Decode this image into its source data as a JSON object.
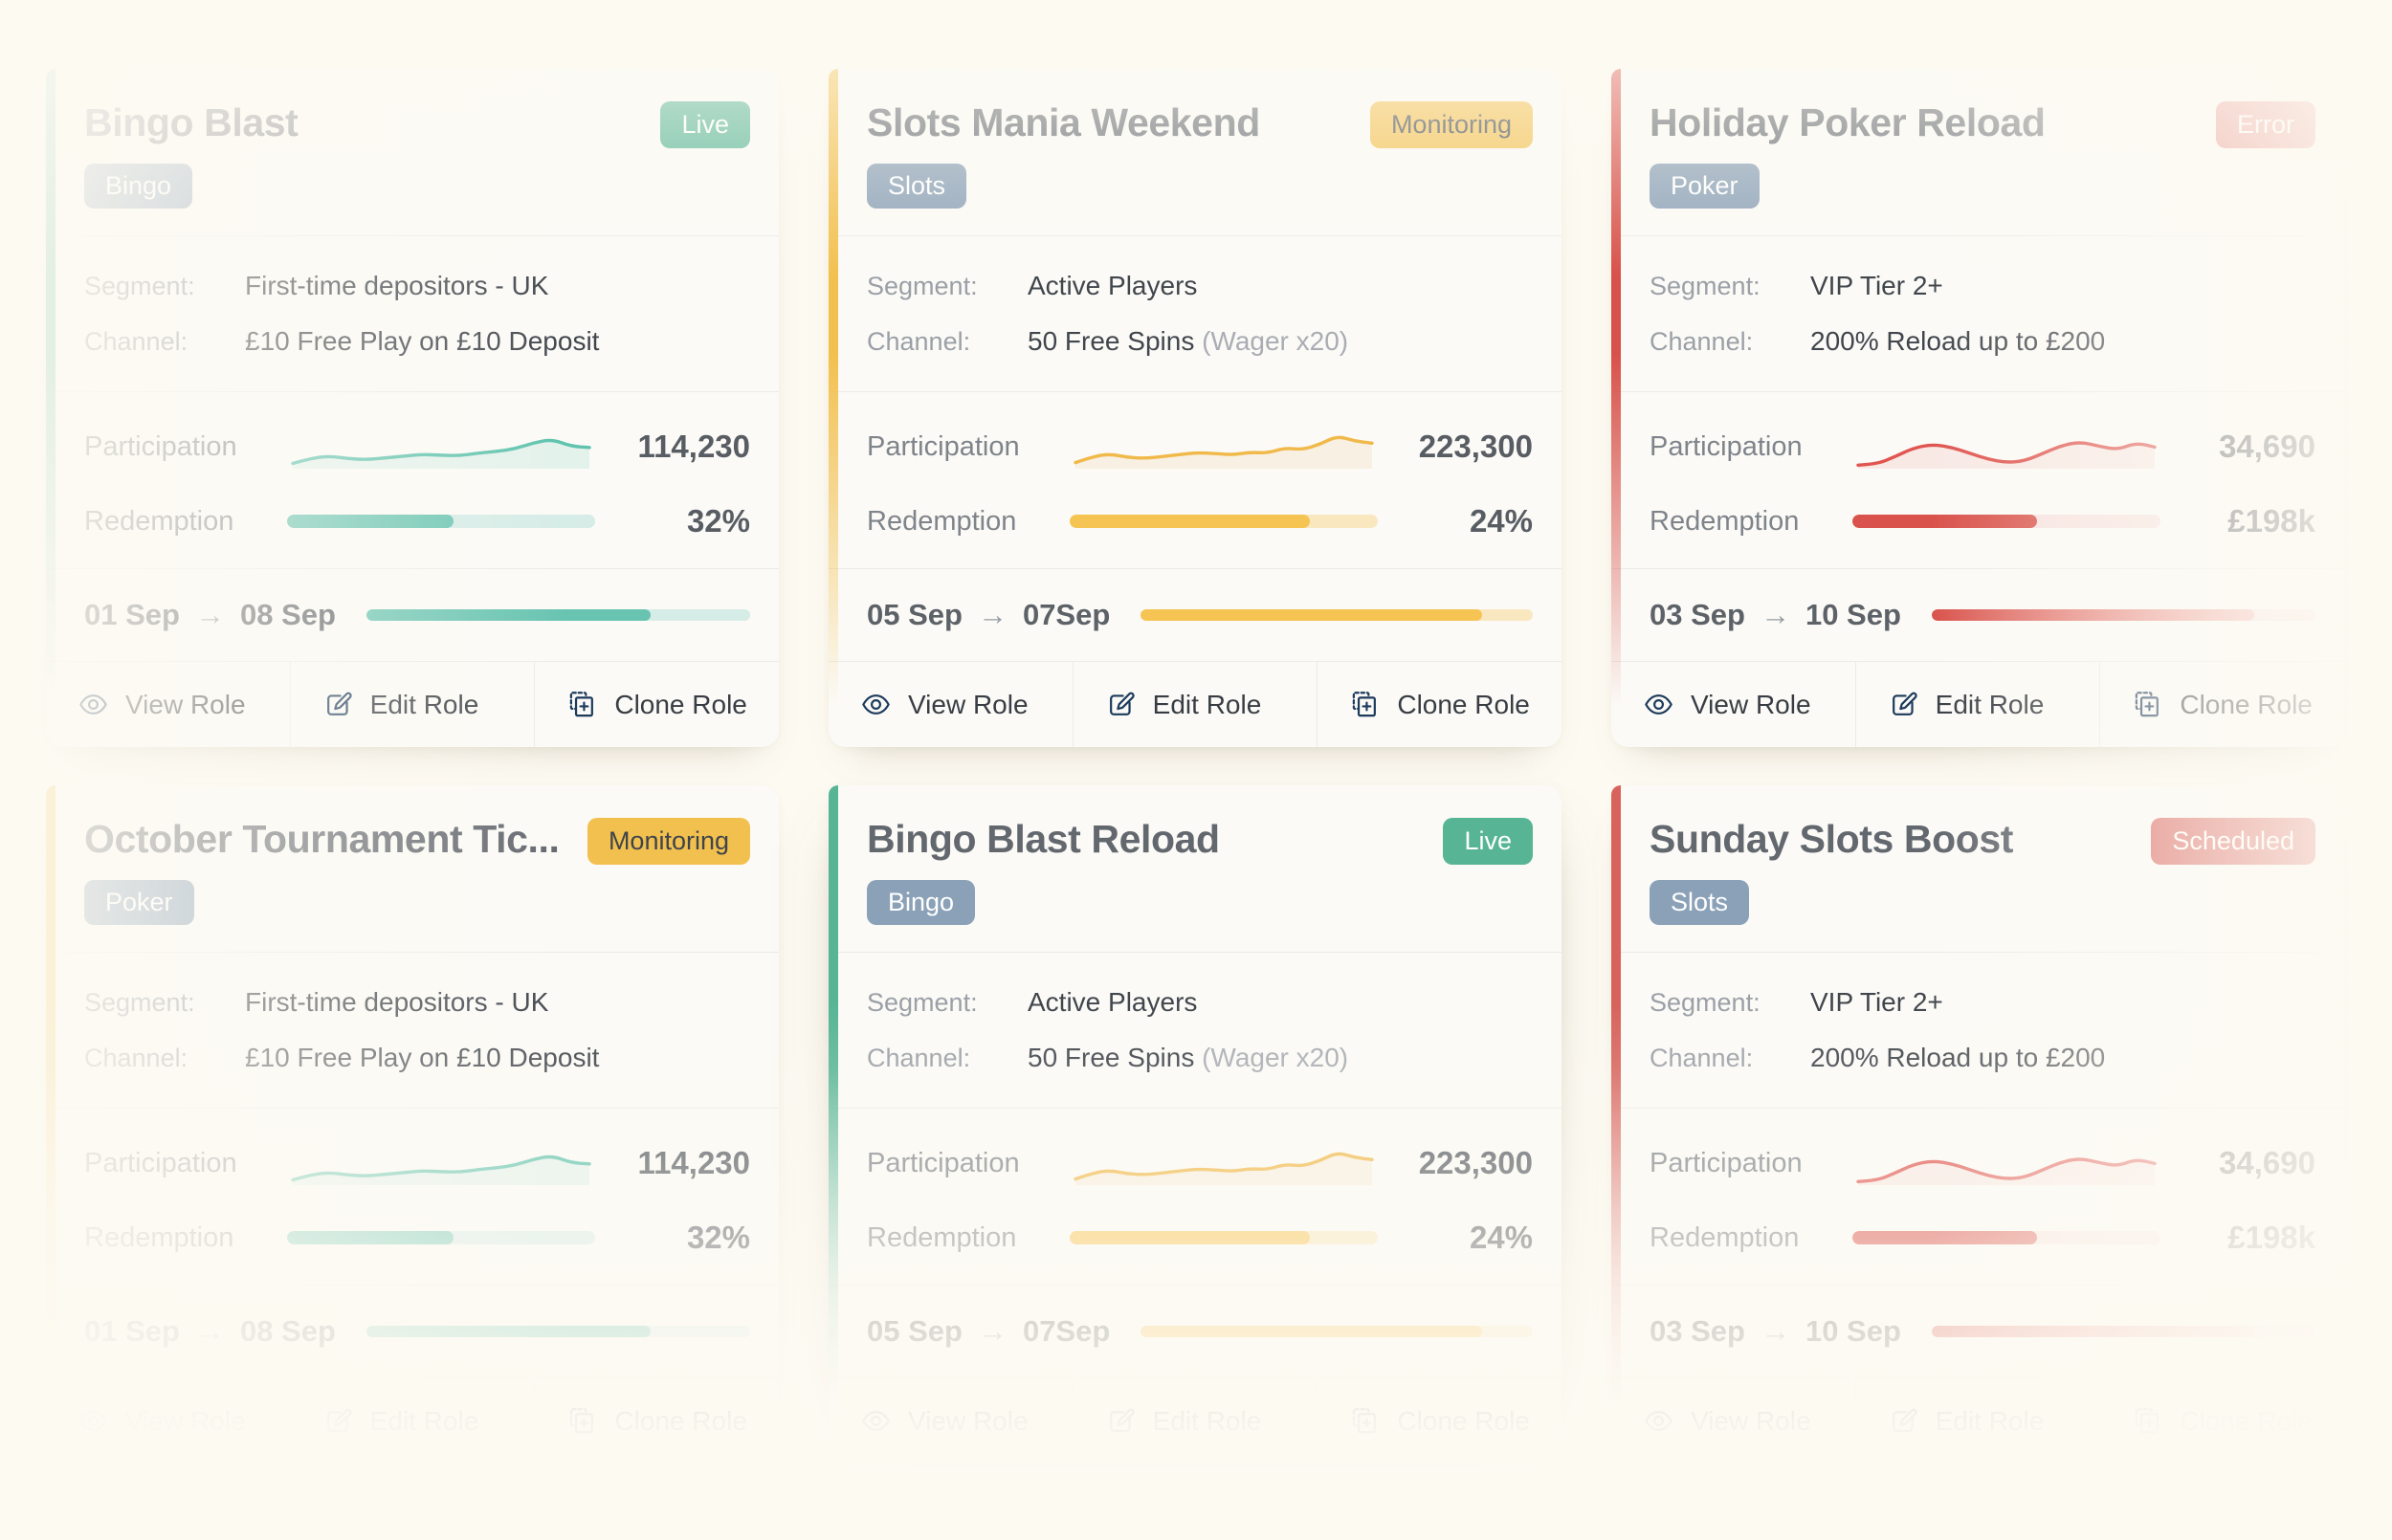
{
  "labels": {
    "segment": "Segment:",
    "channel": "Channel:",
    "participation": "Participation",
    "redemption": "Redemption",
    "arrow": "→"
  },
  "actions": {
    "view": "View Role",
    "edit": "Edit Role",
    "clone": "Clone Role"
  },
  "theme": {
    "page_bg": "#fdfaf2",
    "card_bg": "#fbfaf6",
    "divider": "#ebebe7",
    "title": "#63686f",
    "info_label": "#9ba0a7",
    "info_value": "#41464d",
    "muted": "#a9adb3",
    "stat_label": "#7f848b",
    "stat_value": "#585d64",
    "date": "#5d6268",
    "arrow": "#979ca2",
    "footer_fg": "#383d44",
    "icon": "#1c3a5c",
    "tag_bg": "#8ba1b7",
    "tag_fg": "#ffffff"
  },
  "badges": {
    "live": {
      "bg": "#57b596",
      "fg": "#ffffff"
    },
    "monitoring": {
      "bg": "#f2c04e",
      "fg": "#3f444b"
    },
    "error": {
      "bg": "#d8514a",
      "fg": "#ffffff"
    },
    "scheduled": {
      "bg": "#d8635d",
      "fg": "#ffffff"
    }
  },
  "accents": {
    "teal": {
      "line": "#5fc3ae",
      "area": "rgba(95,195,174,0.14)",
      "bar": "#68c4b1",
      "track": "#d6ece7",
      "bar_end": "#68c4b1"
    },
    "amber": {
      "line": "#f0b94a",
      "area": "rgba(235,175,90,0.13)",
      "bar": "#f6c453",
      "track": "#f9e7c0",
      "bar_end": "#f6c453"
    },
    "red": {
      "line": "#e05550",
      "area": "rgba(224,85,80,0.10)",
      "bar": "#d9534c",
      "track": "#f7e3e1",
      "bar_end": "#f2b6b1"
    }
  },
  "cards": [
    {
      "title": "Bingo Blast",
      "status": "Live",
      "status_key": "live",
      "tag": "Bingo",
      "accent": "teal",
      "elevated": false,
      "segment": "First-time depositors - UK",
      "channel": "£10 Free Play on £10 Deposit",
      "channel_muted": "",
      "participation_value": "114,230",
      "redemption_value": "32%",
      "redemption_fill": 54,
      "date_start": "01 Sep",
      "date_end": "08 Sep",
      "date_fill": 74,
      "sparkline": [
        10,
        22,
        27,
        21,
        19,
        23,
        27,
        31,
        29,
        28,
        34,
        38,
        44,
        58,
        66,
        50,
        47
      ]
    },
    {
      "title": "Slots Mania Weekend",
      "status": "Monitoring",
      "status_key": "monitoring",
      "tag": "Slots",
      "accent": "amber",
      "elevated": false,
      "segment": "Active Players",
      "channel": "50 Free Spins ",
      "channel_muted": "(Wager x20)",
      "participation_value": "223,300",
      "redemption_value": "24%",
      "redemption_fill": 78,
      "date_start": "05 Sep",
      "date_end": "07Sep",
      "date_fill": 87,
      "sparkline": [
        12,
        26,
        32,
        24,
        22,
        26,
        31,
        35,
        33,
        30,
        36,
        34,
        46,
        42,
        54,
        74,
        62,
        57
      ]
    },
    {
      "title": "Holiday Poker Reload",
      "status": "Error",
      "status_key": "error",
      "tag": "Poker",
      "accent": "red",
      "elevated": false,
      "segment": "VIP Tier 2+",
      "channel": "200% Reload up to £200",
      "channel_muted": "",
      "participation_value": "34,690",
      "redemption_value": "£198k",
      "redemption_fill": 60,
      "date_start": "03 Sep",
      "date_end": "10 Sep",
      "date_fill": 84,
      "sparkline": [
        6,
        8,
        26,
        46,
        54,
        48,
        34,
        20,
        12,
        16,
        34,
        52,
        60,
        50,
        42,
        58,
        48
      ]
    },
    {
      "title": "October Tournament Tic...",
      "status": "Monitoring",
      "status_key": "monitoring",
      "tag": "Poker",
      "accent": "teal",
      "elevated": false,
      "segment": "First-time depositors - UK",
      "channel": "£10 Free Play on £10 Deposit",
      "channel_muted": "",
      "participation_value": "114,230",
      "redemption_value": "32%",
      "redemption_fill": 54,
      "date_start": "01 Sep",
      "date_end": "08 Sep",
      "date_fill": 74,
      "sparkline": [
        10,
        22,
        27,
        21,
        19,
        23,
        27,
        31,
        29,
        28,
        34,
        38,
        44,
        58,
        66,
        50,
        47
      ]
    },
    {
      "title": "Bingo Blast Reload",
      "status": "Live",
      "status_key": "live",
      "tag": "Bingo",
      "accent": "amber",
      "elevated": true,
      "segment": "Active Players",
      "channel": "50 Free Spins ",
      "channel_muted": "(Wager x20)",
      "participation_value": "223,300",
      "redemption_value": "24%",
      "redemption_fill": 78,
      "date_start": "05 Sep",
      "date_end": "07Sep",
      "date_fill": 87,
      "sparkline": [
        12,
        26,
        32,
        24,
        22,
        26,
        31,
        35,
        33,
        30,
        36,
        34,
        46,
        42,
        54,
        74,
        62,
        57
      ]
    },
    {
      "title": "Sunday Slots Boost",
      "status": "Scheduled",
      "status_key": "scheduled",
      "tag": "Slots",
      "accent": "red",
      "elevated": false,
      "segment": "VIP Tier 2+",
      "channel": "200% Reload up to £200",
      "channel_muted": "",
      "participation_value": "34,690",
      "redemption_value": "£198k",
      "redemption_fill": 60,
      "date_start": "03 Sep",
      "date_end": "10 Sep",
      "date_fill": 84,
      "sparkline": [
        6,
        8,
        26,
        46,
        54,
        48,
        34,
        20,
        12,
        16,
        34,
        52,
        60,
        50,
        42,
        58,
        48
      ]
    }
  ]
}
